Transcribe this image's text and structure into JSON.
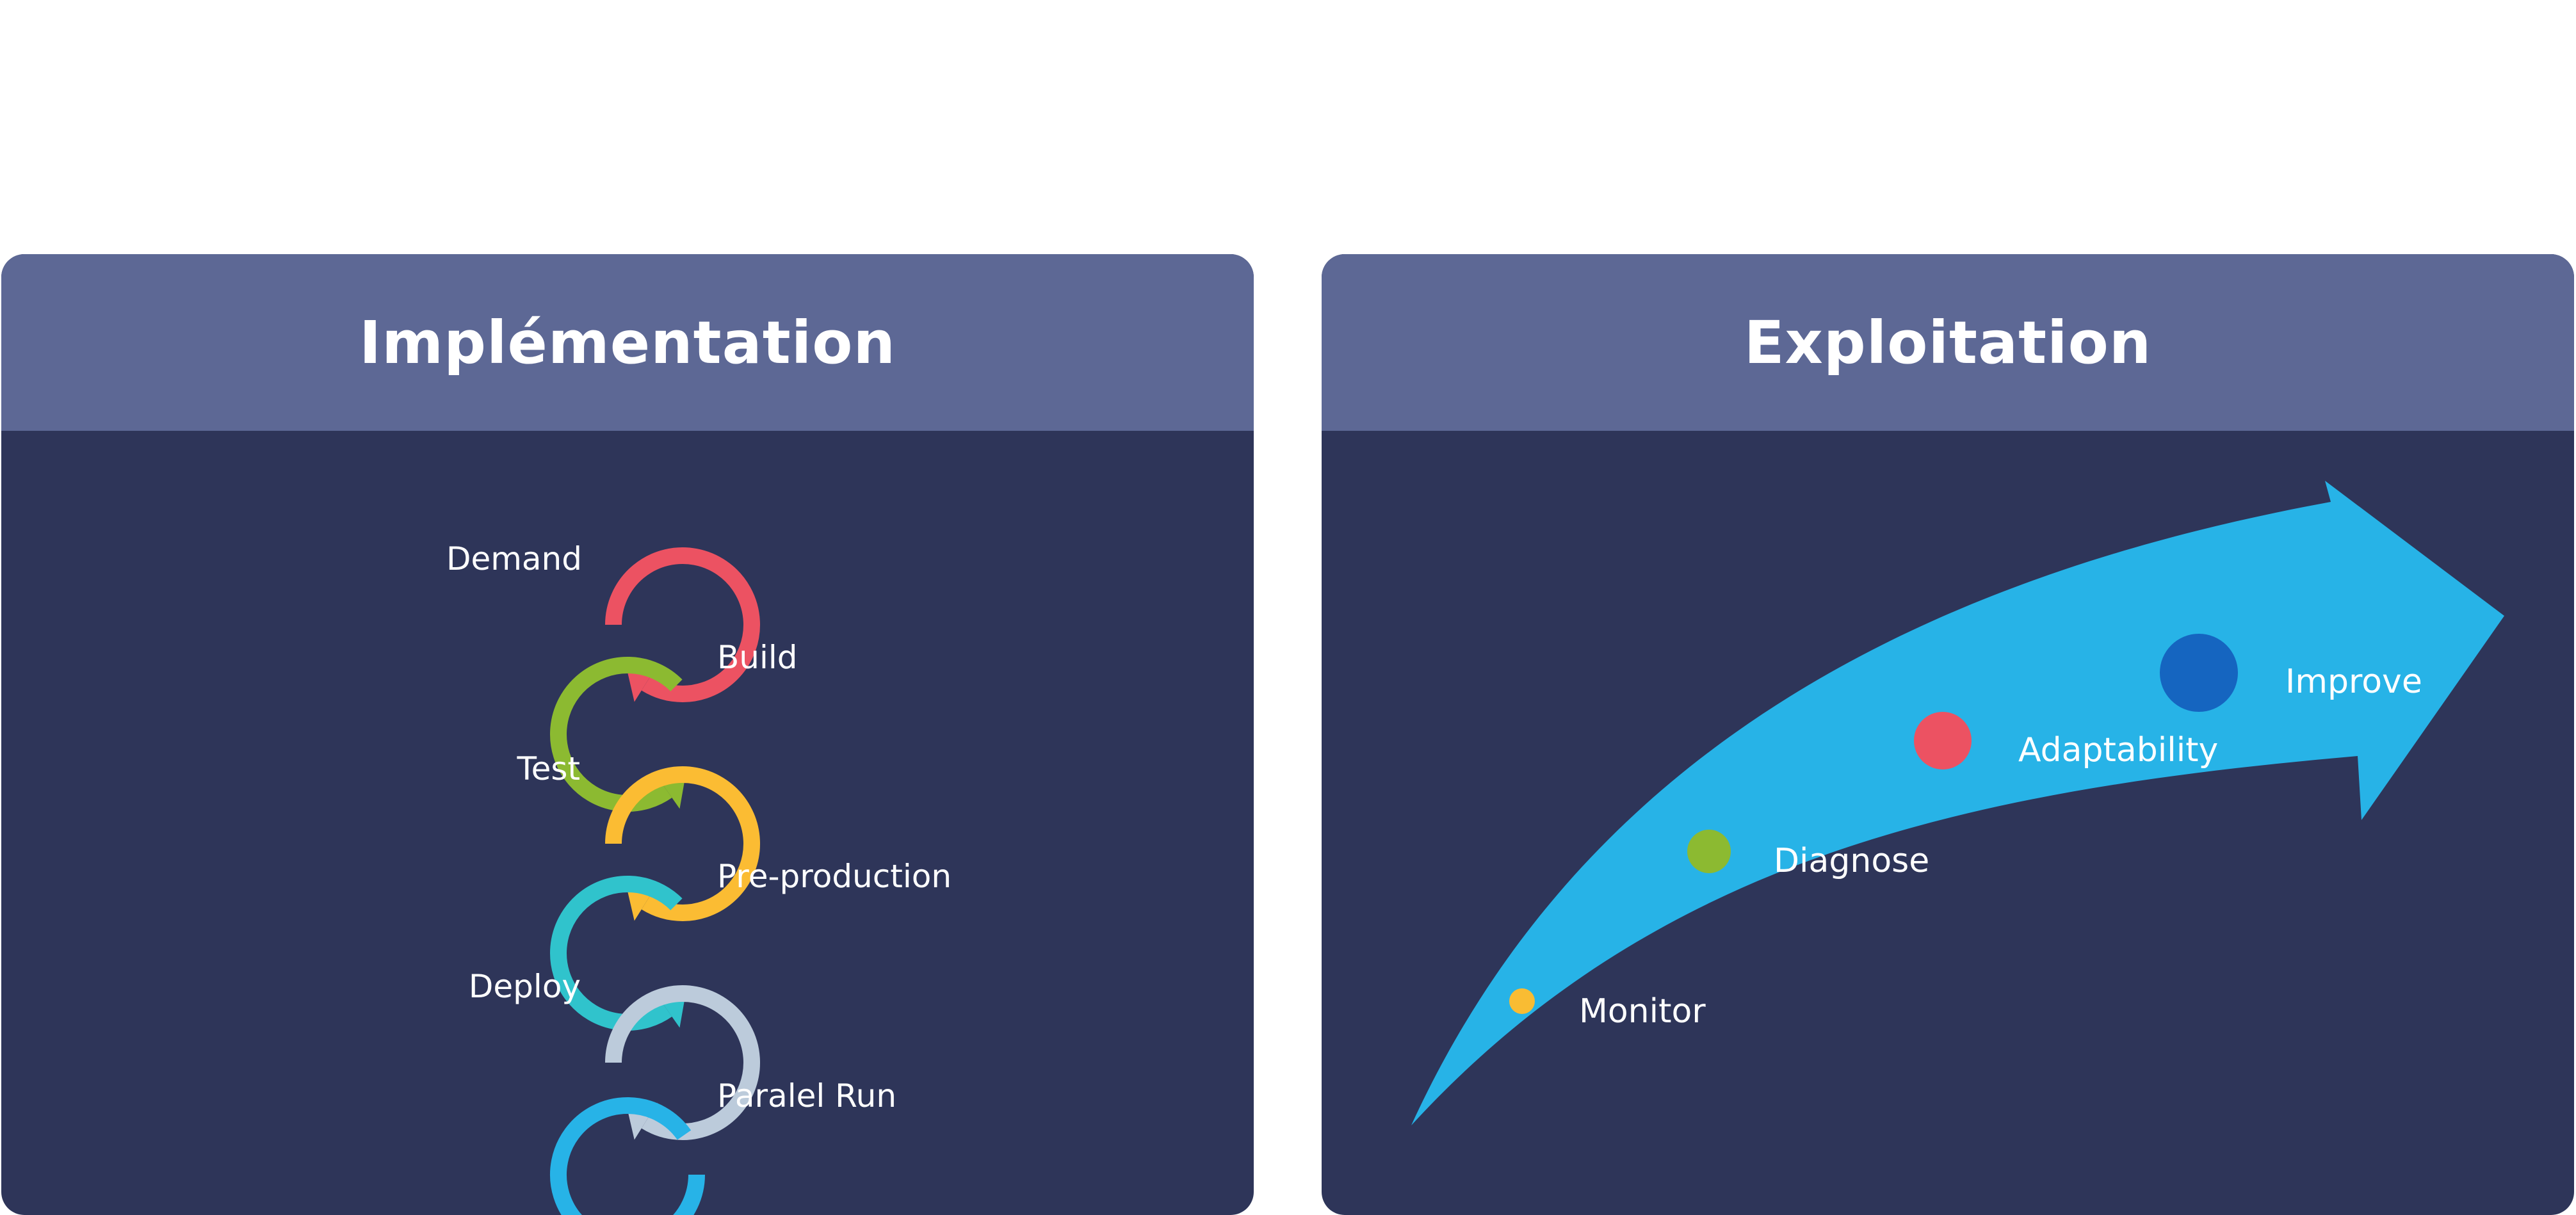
{
  "implementation": {
    "title": "Implémentation",
    "steps": [
      {
        "label": "Demand",
        "color": "#ec5262"
      },
      {
        "label": "Build",
        "color": "#8cba31"
      },
      {
        "label": "Test",
        "color": "#fbbc33"
      },
      {
        "label": "Pre-production",
        "color": "#30c3cc"
      },
      {
        "label": "Deploy",
        "color": "#bccbdb"
      },
      {
        "label": "Paralel Run",
        "color": "#27b3e7"
      }
    ]
  },
  "exploitation": {
    "title": "Exploitation",
    "arrow_color": "#27b3e7",
    "stages": [
      {
        "label": "Monitor",
        "color": "#f9bc33"
      },
      {
        "label": "Diagnose",
        "color": "#8cba31"
      },
      {
        "label": "Adaptability",
        "color": "#ec5262"
      },
      {
        "label": "Improve",
        "color": "#1565c0"
      }
    ]
  }
}
